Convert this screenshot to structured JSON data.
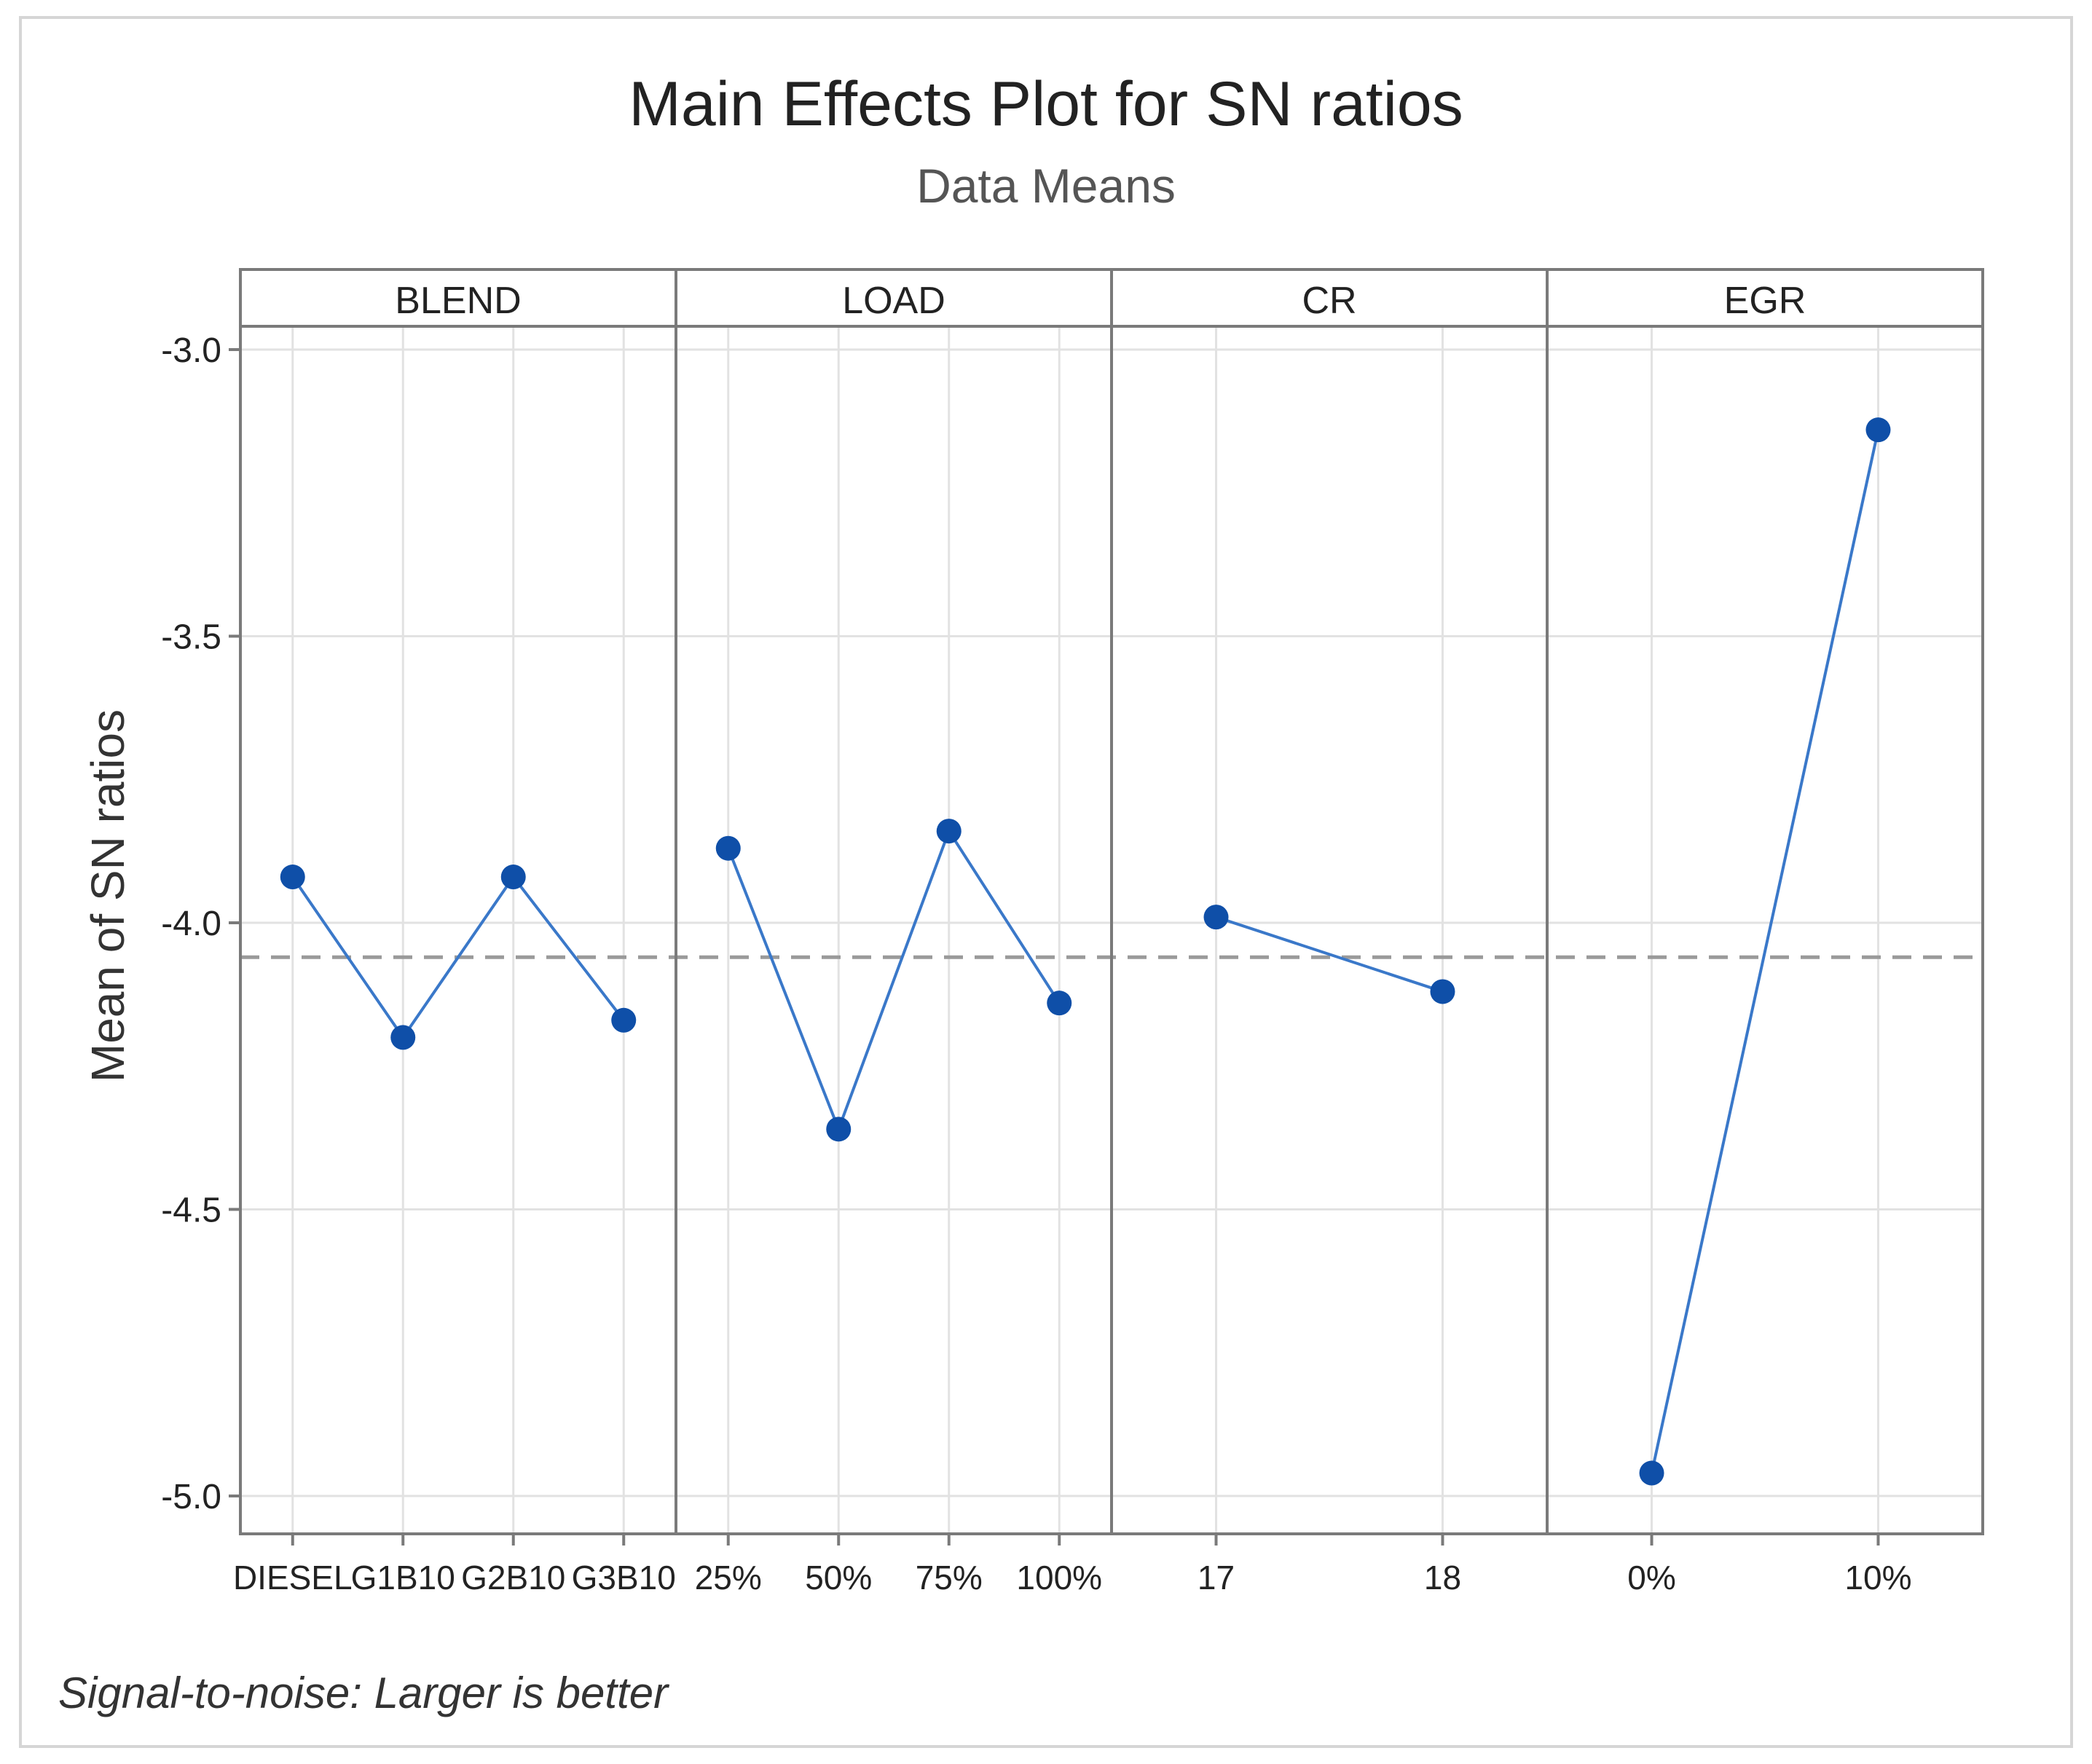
{
  "chart_data": {
    "type": "line",
    "title": "Main Effects Plot for SN ratios",
    "subtitle": "Data Means",
    "ylabel": "Mean of SN ratios",
    "xlabel": "",
    "footnote": "Signal-to-noise: Larger is better",
    "ylim": [
      -5.07,
      -2.97
    ],
    "yticks": [
      -3.0,
      -3.5,
      -4.0,
      -4.5,
      -5.0
    ],
    "ytick_labels": [
      "-3.0",
      "-3.5",
      "-4.0",
      "-4.5",
      "-5.0"
    ],
    "reference_line": -4.06,
    "grid": true,
    "panels": [
      {
        "name": "BLEND",
        "categories": [
          "DIESEL",
          "G1B10",
          "G2B10",
          "G3B10"
        ],
        "values": [
          -3.92,
          -4.2,
          -3.92,
          -4.17
        ]
      },
      {
        "name": "LOAD",
        "categories": [
          "25%",
          "50%",
          "75%",
          "100%"
        ],
        "values": [
          -3.87,
          -4.36,
          -3.84,
          -4.14
        ]
      },
      {
        "name": "CR",
        "categories": [
          "17",
          "18"
        ],
        "values": [
          -3.99,
          -4.12
        ]
      },
      {
        "name": "EGR",
        "categories": [
          "0%",
          "10%"
        ],
        "values": [
          -4.96,
          -3.14
        ]
      }
    ],
    "colors": {
      "line": "#3a78c9",
      "marker": "#0f4fa8",
      "grid": "#e2e2e2",
      "reference": "#9a9a9a",
      "frame": "#7a7a7a",
      "text": "#222222"
    }
  }
}
